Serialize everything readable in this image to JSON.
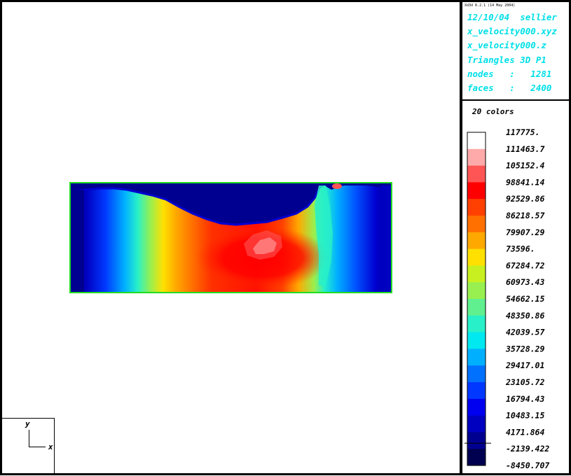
{
  "header": {
    "version": "Xd3d 8.2.1 (14 May 2004)",
    "date_user": "12/10/04  sellier",
    "file_xyz": "x_velocity000.xyz",
    "file_z": "x_velocity000.z",
    "element_type": "Triangles 3D P1",
    "nodes": "nodes   :   1281",
    "faces": "faces   :   2400"
  },
  "legend": {
    "n_colors_label": "20 colors"
  },
  "axes_indicator": {
    "y": "y",
    "x": "x"
  },
  "colors": {
    "frame": "#000000",
    "header_text": "#00e0e8",
    "domain_outline": "#22dd22"
  },
  "chart_data": {
    "type": "heatmap",
    "title": "",
    "xlabel": "",
    "ylabel": "",
    "field": "x_velocity",
    "n_levels": 20,
    "min": -8450.707,
    "max": 117775.0,
    "tick_labels": [
      "117775.",
      "111463.7",
      "105152.4",
      "98841.14",
      "92529.86",
      "86218.57",
      "79907.29",
      "73596.",
      "67284.72",
      "60973.43",
      "54662.15",
      "48350.86",
      "42039.57",
      "35728.29",
      "29417.01",
      "23105.72",
      "16794.43",
      "10483.15",
      "4171.864",
      "-2139.422",
      "-8450.707"
    ],
    "level_colors": [
      "#ffffff",
      "#ffaaaa",
      "#ff5555",
      "#ff0000",
      "#ff4000",
      "#ff7000",
      "#ffa800",
      "#ffe000",
      "#c8f020",
      "#98f050",
      "#60f090",
      "#28f0c8",
      "#00e8f0",
      "#00b0ff",
      "#0070ff",
      "#0038ff",
      "#0000f0",
      "#0000c0",
      "#000090",
      "#000050"
    ]
  }
}
